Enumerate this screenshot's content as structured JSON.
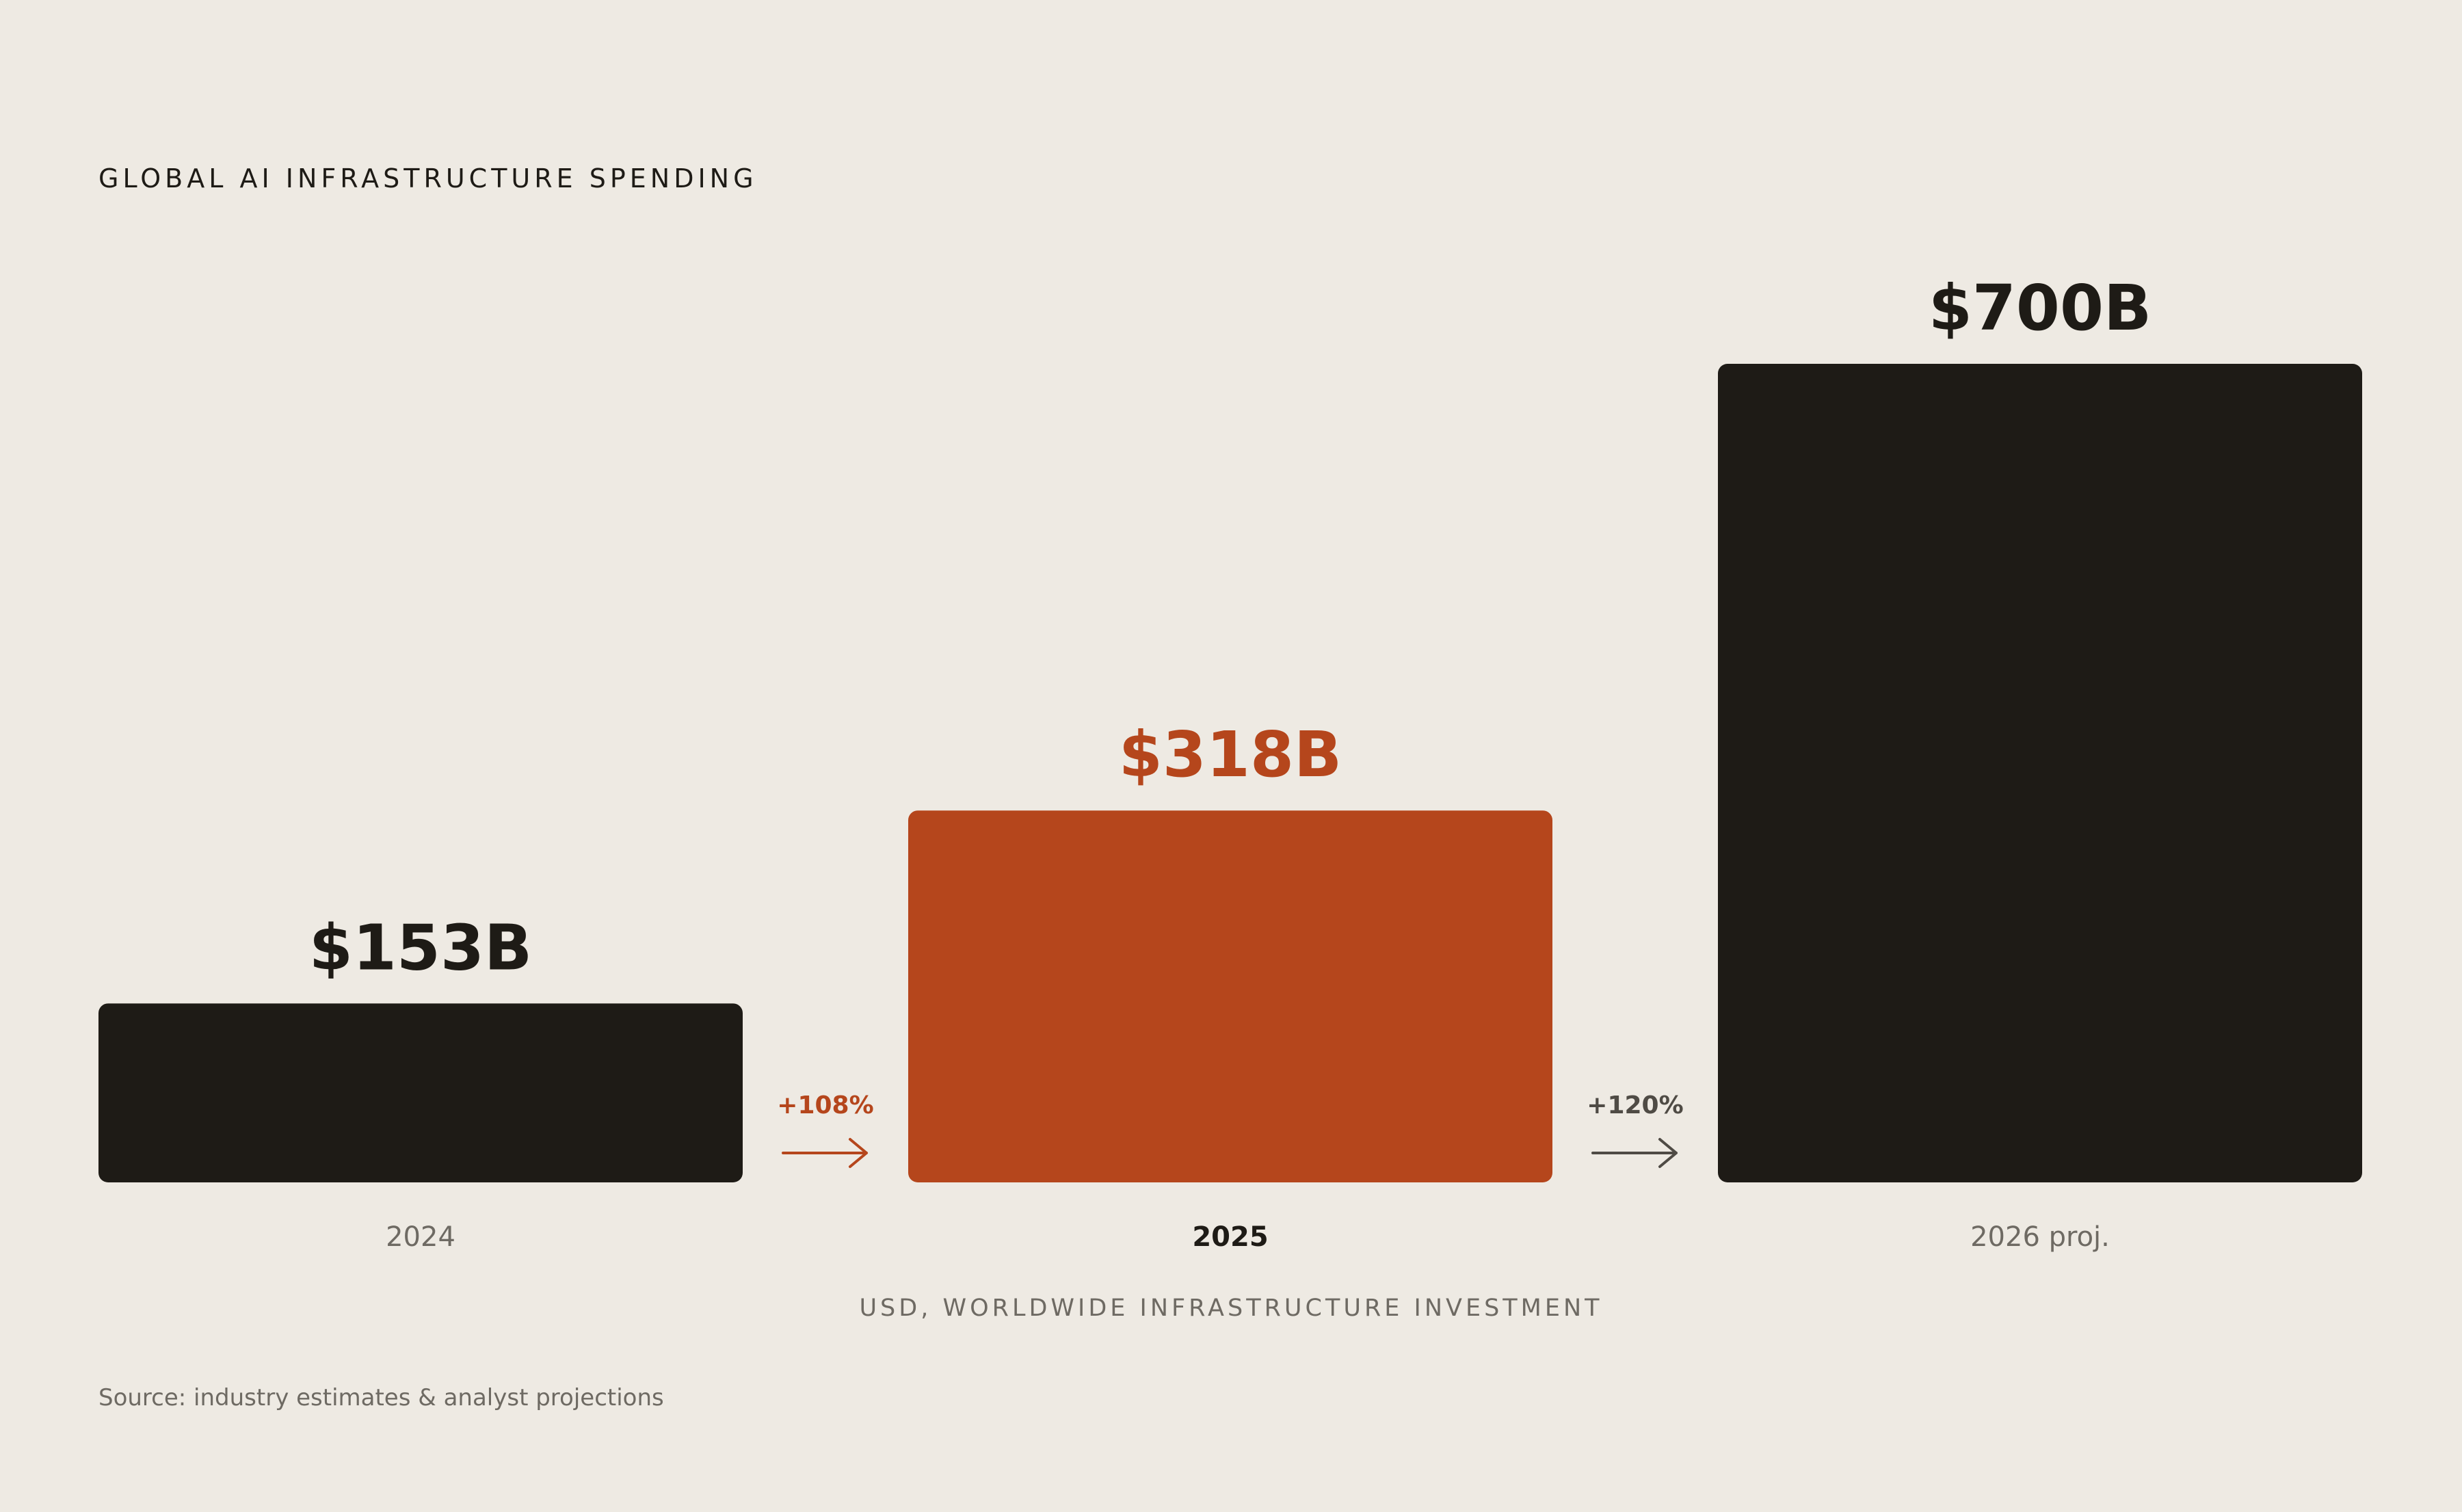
{
  "chart_data": {
    "type": "bar",
    "title": "GLOBAL AI INFRASTRUCTURE SPENDING",
    "subtitle": "USD, WORLDWIDE INFRASTRUCTURE INVESTMENT",
    "source": "Source: industry estimates & analyst projections",
    "categories": [
      "2024",
      "2025",
      "2026 proj."
    ],
    "values": [
      153,
      318,
      700
    ],
    "value_labels": [
      "$153B",
      "$318B",
      "$700B"
    ],
    "highlight_index": 1,
    "growth": [
      {
        "label": "+108%",
        "color": "#b5461c"
      },
      {
        "label": "+120%",
        "color": "#4f4b45"
      }
    ],
    "colors": {
      "bar": "#1e1b16",
      "highlight": "#b5461c",
      "background": "#eeeae3",
      "muted_text": "#6e6a63"
    },
    "ylim": [
      0,
      700
    ],
    "grid": false,
    "legend": "none"
  }
}
